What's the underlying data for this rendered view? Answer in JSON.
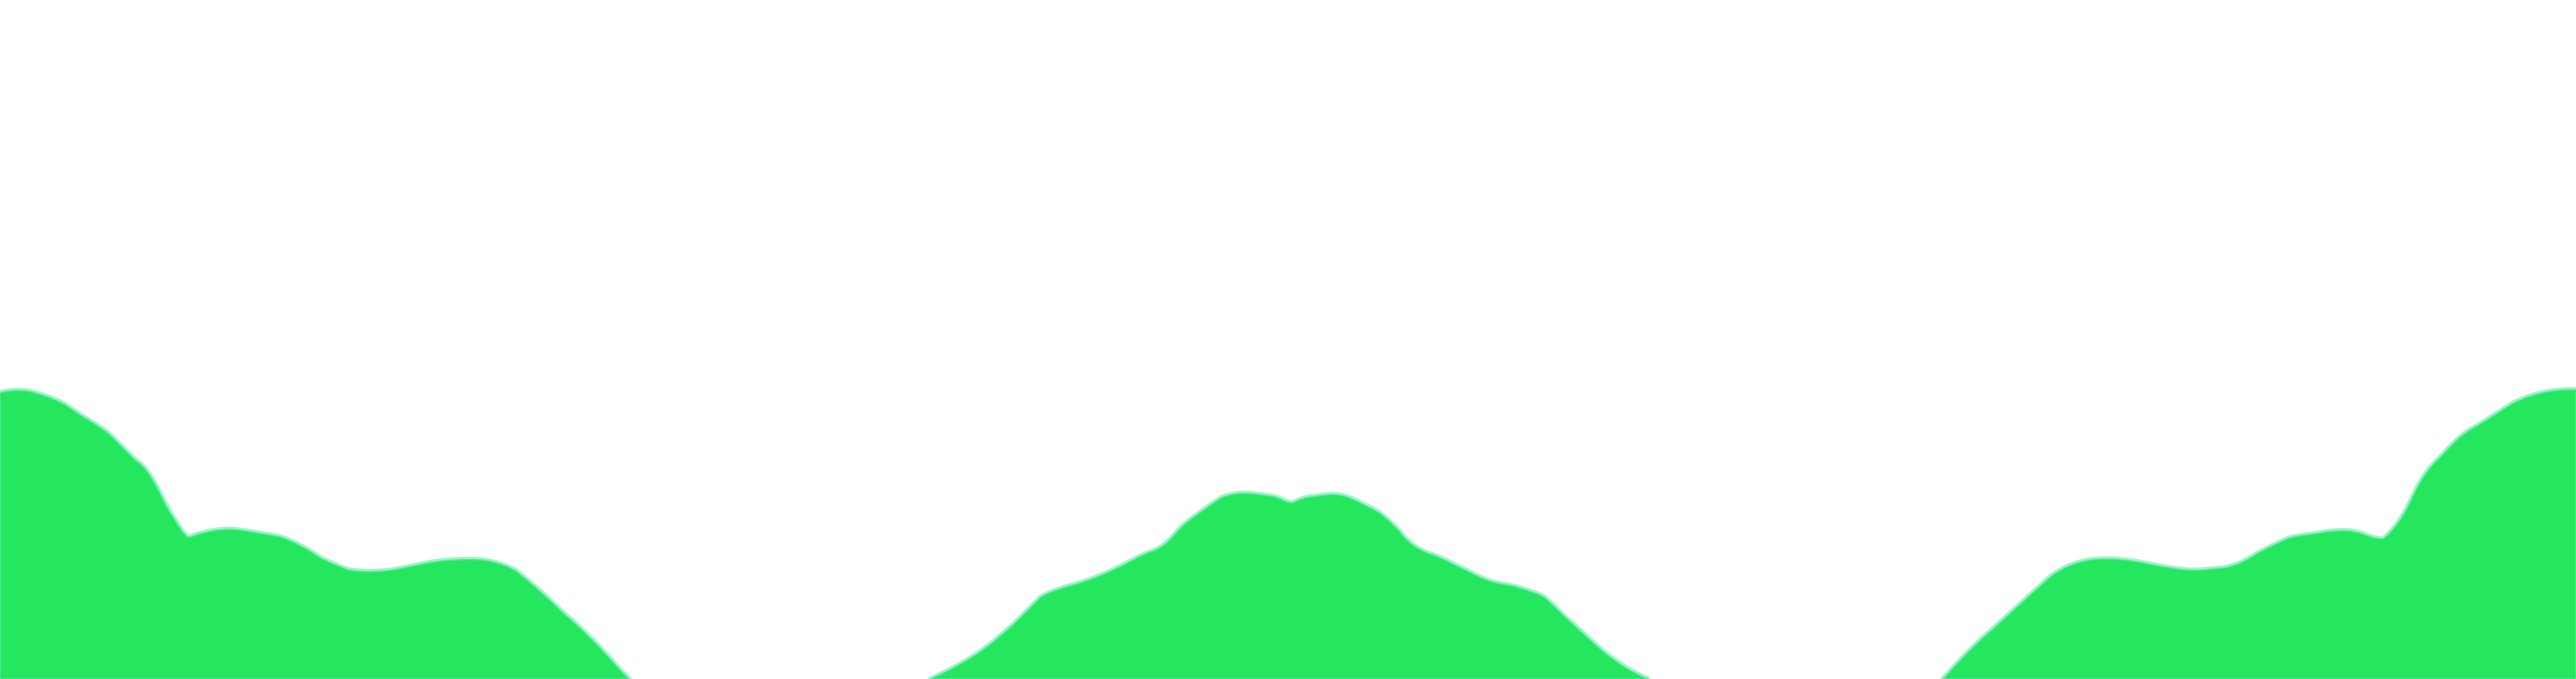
{
  "scene": {
    "background_color": "#ffffff",
    "terrain_fill_color": "#24e75e",
    "terrain_outline_color": "#9ff5c4",
    "terrain_outline_inner_color": "#4fe99a",
    "hill_count": 3
  }
}
